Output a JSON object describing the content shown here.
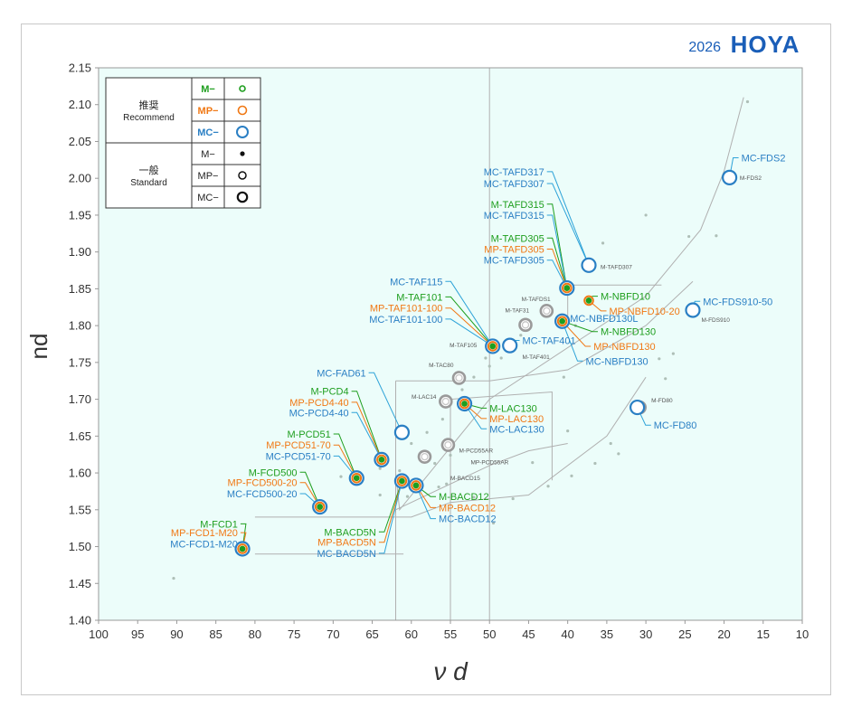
{
  "header": {
    "year": "2026",
    "brand": "HOYA"
  },
  "legend": {
    "recommend_label_ja": "推奨",
    "recommend_label_en": "Recommend",
    "standard_label_ja": "一般",
    "standard_label_en": "Standard",
    "rows": [
      {
        "group": "recommend",
        "series": "M−",
        "symbol": "green ring"
      },
      {
        "group": "recommend",
        "series": "MP−",
        "symbol": "orange ring"
      },
      {
        "group": "recommend",
        "series": "MC−",
        "symbol": "blue ring"
      },
      {
        "group": "standard",
        "series": "M−",
        "symbol": "black dot"
      },
      {
        "group": "standard",
        "series": "MP−",
        "symbol": "black ring"
      },
      {
        "group": "standard",
        "series": "MC−",
        "symbol": "black thick ring"
      }
    ]
  },
  "colors": {
    "plot_bg": "#ecfdfa",
    "m": "#1e9e1e",
    "mp": "#f07814",
    "mc": "#2a7fc4",
    "leader_mc": "#2ea3d8",
    "standard": "#9a9a9a",
    "grid_line": "#b0b0b0",
    "brand": "#1a5eb8"
  },
  "chart_data": {
    "type": "scatter",
    "title": "",
    "xlabel": "ν d",
    "ylabel": "nd",
    "xlim": [
      100,
      10
    ],
    "ylim": [
      1.4,
      2.15
    ],
    "x_reversed": true,
    "xticks": [
      "100",
      "95",
      "90",
      "85",
      "80",
      "75",
      "70",
      "65",
      "60",
      "55",
      "50",
      "45",
      "40",
      "35",
      "30",
      "25",
      "20",
      "15",
      "10"
    ],
    "yticks": [
      "1.40",
      "1.45",
      "1.50",
      "1.55",
      "1.60",
      "1.65",
      "1.70",
      "1.75",
      "1.80",
      "1.85",
      "1.90",
      "1.95",
      "2.00",
      "2.05",
      "2.10",
      "2.15"
    ],
    "grid": false,
    "legend_placement": "top-left",
    "recommended_points": [
      {
        "x": 81.6,
        "y": 1.497,
        "rec": [
          "M",
          "MP",
          "MC"
        ]
      },
      {
        "x": 71.7,
        "y": 1.554,
        "rec": [
          "M",
          "MP",
          "MC"
        ]
      },
      {
        "x": 67.0,
        "y": 1.593,
        "rec": [
          "M",
          "MP",
          "MC"
        ]
      },
      {
        "x": 63.8,
        "y": 1.618,
        "rec": [
          "M",
          "MP",
          "MC"
        ]
      },
      {
        "x": 61.2,
        "y": 1.589,
        "rec": [
          "M",
          "MP",
          "MC"
        ]
      },
      {
        "x": 59.4,
        "y": 1.583,
        "rec": [
          "M",
          "MP",
          "MC"
        ]
      },
      {
        "x": 61.2,
        "y": 1.655,
        "rec": [
          "MC"
        ]
      },
      {
        "x": 53.2,
        "y": 1.694,
        "rec": [
          "M",
          "MP",
          "MC"
        ]
      },
      {
        "x": 49.6,
        "y": 1.772,
        "rec": [
          "M",
          "MP",
          "MC"
        ]
      },
      {
        "x": 47.4,
        "y": 1.773,
        "rec": [
          "MC"
        ]
      },
      {
        "x": 40.1,
        "y": 1.851,
        "rec": [
          "M",
          "MP",
          "MC"
        ]
      },
      {
        "x": 37.3,
        "y": 1.882,
        "rec": [
          "MC"
        ]
      },
      {
        "x": 37.3,
        "y": 1.834,
        "rec": [
          "M",
          "MP"
        ]
      },
      {
        "x": 40.7,
        "y": 1.806,
        "rec": [
          "M",
          "MP",
          "MC"
        ]
      },
      {
        "x": 31.1,
        "y": 1.689,
        "rec": [
          "MC"
        ]
      },
      {
        "x": 24.0,
        "y": 1.821,
        "rec": [
          "MC"
        ]
      },
      {
        "x": 19.3,
        "y": 2.001,
        "rec": [
          "MC"
        ]
      }
    ],
    "standard_rings": [
      {
        "x": 58.3,
        "y": 1.622
      },
      {
        "x": 55.3,
        "y": 1.638
      },
      {
        "x": 55.6,
        "y": 1.697
      },
      {
        "x": 53.9,
        "y": 1.729
      },
      {
        "x": 45.4,
        "y": 1.801
      },
      {
        "x": 42.7,
        "y": 1.82
      },
      {
        "x": 49.6,
        "y": 1.772
      },
      {
        "x": 30.8,
        "y": 1.689
      },
      {
        "x": 19.3,
        "y": 2.001
      },
      {
        "x": 24.0,
        "y": 1.821
      }
    ],
    "standard_dots": [
      {
        "x": 90.4,
        "y": 1.457
      },
      {
        "x": 17.0,
        "y": 2.104
      },
      {
        "x": 30.0,
        "y": 1.95
      },
      {
        "x": 35.5,
        "y": 1.912
      },
      {
        "x": 24.5,
        "y": 1.921
      },
      {
        "x": 21.0,
        "y": 1.922
      },
      {
        "x": 40.5,
        "y": 1.73
      },
      {
        "x": 48.5,
        "y": 1.756
      },
      {
        "x": 50.5,
        "y": 1.756
      },
      {
        "x": 52.0,
        "y": 1.73
      },
      {
        "x": 50.0,
        "y": 1.745
      },
      {
        "x": 53.5,
        "y": 1.713
      },
      {
        "x": 46.0,
        "y": 1.787
      },
      {
        "x": 39.0,
        "y": 1.8
      },
      {
        "x": 26.5,
        "y": 1.762
      },
      {
        "x": 27.5,
        "y": 1.728
      },
      {
        "x": 28.3,
        "y": 1.755
      },
      {
        "x": 40.0,
        "y": 1.657
      },
      {
        "x": 34.5,
        "y": 1.64
      },
      {
        "x": 33.5,
        "y": 1.626
      },
      {
        "x": 36.5,
        "y": 1.613
      },
      {
        "x": 39.5,
        "y": 1.596
      },
      {
        "x": 44.5,
        "y": 1.614
      },
      {
        "x": 42.5,
        "y": 1.582
      },
      {
        "x": 47.0,
        "y": 1.565
      },
      {
        "x": 49.5,
        "y": 1.532
      },
      {
        "x": 52.0,
        "y": 1.567
      },
      {
        "x": 55.5,
        "y": 1.585
      },
      {
        "x": 56.5,
        "y": 1.581
      },
      {
        "x": 57.0,
        "y": 1.613
      },
      {
        "x": 60.0,
        "y": 1.64
      },
      {
        "x": 58.0,
        "y": 1.655
      },
      {
        "x": 61.5,
        "y": 1.603
      },
      {
        "x": 60.5,
        "y": 1.568
      },
      {
        "x": 64.0,
        "y": 1.57
      },
      {
        "x": 64.0,
        "y": 1.606
      },
      {
        "x": 69.0,
        "y": 1.595
      },
      {
        "x": 55.0,
        "y": 1.624
      },
      {
        "x": 56.0,
        "y": 1.673
      }
    ],
    "labels": [
      {
        "text": "M-FCD1",
        "series": "M",
        "size": "big",
        "x": 82.2,
        "y": 1.526,
        "ax": 81.6,
        "ay": 1.497
      },
      {
        "text": "MP-FCD1-M20",
        "series": "MP",
        "size": "big",
        "x": 82.2,
        "y": 1.514,
        "ax": 81.6,
        "ay": 1.497
      },
      {
        "text": "MC-FCD1-M20",
        "series": "MC",
        "size": "big",
        "x": 82.2,
        "y": 1.499,
        "ax": 81.6,
        "ay": 1.497
      },
      {
        "text": "M-FCD500",
        "series": "M",
        "size": "big",
        "x": 74.6,
        "y": 1.596,
        "ax": 71.7,
        "ay": 1.554
      },
      {
        "text": "MP-FCD500-20",
        "series": "MP",
        "size": "big",
        "x": 74.6,
        "y": 1.582,
        "ax": 71.7,
        "ay": 1.554
      },
      {
        "text": "MC-FCD500-20",
        "series": "MC",
        "size": "big",
        "x": 74.6,
        "y": 1.567,
        "ax": 71.7,
        "ay": 1.554
      },
      {
        "text": "M-PCD51",
        "series": "M",
        "size": "big",
        "x": 70.3,
        "y": 1.648,
        "ax": 67.0,
        "ay": 1.593
      },
      {
        "text": "MP-PCD51-70",
        "series": "MP",
        "size": "big",
        "x": 70.3,
        "y": 1.633,
        "ax": 67.0,
        "ay": 1.593
      },
      {
        "text": "MC-PCD51-70",
        "series": "MC",
        "size": "big",
        "x": 70.3,
        "y": 1.618,
        "ax": 67.0,
        "ay": 1.593
      },
      {
        "text": "M-PCD4",
        "series": "M",
        "size": "big",
        "x": 68.0,
        "y": 1.706,
        "ax": 63.8,
        "ay": 1.618
      },
      {
        "text": "MP-PCD4-40",
        "series": "MP",
        "size": "big",
        "x": 68.0,
        "y": 1.691,
        "ax": 63.8,
        "ay": 1.618
      },
      {
        "text": "MC-PCD4-40",
        "series": "MC",
        "size": "big",
        "x": 68.0,
        "y": 1.677,
        "ax": 63.8,
        "ay": 1.618
      },
      {
        "text": "MC-FAD61",
        "series": "MC",
        "size": "big",
        "x": 65.8,
        "y": 1.731,
        "ax": 61.2,
        "ay": 1.655
      },
      {
        "text": "M-BACD5N",
        "series": "M",
        "size": "big",
        "x": 64.5,
        "y": 1.515,
        "ax": 61.2,
        "ay": 1.589,
        "anchor": "end",
        "labelBelow": true
      },
      {
        "text": "MP-BACD5N",
        "series": "MP",
        "size": "big",
        "x": 64.5,
        "y": 1.501,
        "ax": 61.2,
        "ay": 1.589,
        "anchor": "end",
        "labelBelow": true
      },
      {
        "text": "MC-BACD5N",
        "series": "MC",
        "size": "big",
        "x": 64.5,
        "y": 1.486,
        "ax": 61.2,
        "ay": 1.589,
        "anchor": "end",
        "labelBelow": true
      },
      {
        "text": "M-BACD12",
        "series": "M",
        "size": "big",
        "x": 56.5,
        "y": 1.563,
        "ax": 59.4,
        "ay": 1.583,
        "anchor": "start"
      },
      {
        "text": "MP-BACD12",
        "series": "MP",
        "size": "big",
        "x": 56.5,
        "y": 1.548,
        "ax": 59.4,
        "ay": 1.583,
        "anchor": "start"
      },
      {
        "text": "MC-BACD12",
        "series": "MC",
        "size": "big",
        "x": 56.5,
        "y": 1.533,
        "ax": 59.4,
        "ay": 1.583,
        "anchor": "start"
      },
      {
        "text": "M-LAC130",
        "series": "M",
        "size": "big",
        "x": 50.0,
        "y": 1.683,
        "ax": 53.2,
        "ay": 1.694,
        "anchor": "start"
      },
      {
        "text": "MP-LAC130",
        "series": "MP",
        "size": "big",
        "x": 50.0,
        "y": 1.669,
        "ax": 53.2,
        "ay": 1.694,
        "anchor": "start"
      },
      {
        "text": "MC-LAC130",
        "series": "MC",
        "size": "big",
        "x": 50.0,
        "y": 1.655,
        "ax": 53.2,
        "ay": 1.694,
        "anchor": "start"
      },
      {
        "text": "MC-TAF115",
        "series": "MC",
        "size": "big",
        "x": 56.0,
        "y": 1.855,
        "ax": 49.6,
        "ay": 1.772
      },
      {
        "text": "M-TAF101",
        "series": "M",
        "size": "big",
        "x": 56.0,
        "y": 1.834,
        "ax": 49.6,
        "ay": 1.772
      },
      {
        "text": "MP-TAF101-100",
        "series": "MP",
        "size": "big",
        "x": 56.0,
        "y": 1.819,
        "ax": 49.6,
        "ay": 1.772
      },
      {
        "text": "MC-TAF101-100",
        "series": "MC",
        "size": "big",
        "x": 56.0,
        "y": 1.804,
        "ax": 49.6,
        "ay": 1.772
      },
      {
        "text": "MC-TAF401",
        "series": "MC",
        "size": "big",
        "x": 45.8,
        "y": 1.775,
        "ax": 47.4,
        "ay": 1.773,
        "anchor": "start"
      },
      {
        "text": "MC-TAFD317",
        "series": "MC",
        "size": "big",
        "x": 43.0,
        "y": 2.004,
        "ax": 37.3,
        "ay": 1.882
      },
      {
        "text": "MC-TAFD307",
        "series": "MC",
        "size": "big",
        "x": 43.0,
        "y": 1.988,
        "ax": 37.3,
        "ay": 1.882
      },
      {
        "text": "M-TAFD315",
        "series": "M",
        "size": "big",
        "x": 43.0,
        "y": 1.96,
        "ax": 40.1,
        "ay": 1.851
      },
      {
        "text": "MC-TAFD315",
        "series": "MC",
        "size": "big",
        "x": 43.0,
        "y": 1.945,
        "ax": 40.1,
        "ay": 1.851
      },
      {
        "text": "M-TAFD305",
        "series": "M",
        "size": "big",
        "x": 43.0,
        "y": 1.914,
        "ax": 40.1,
        "ay": 1.851
      },
      {
        "text": "MP-TAFD305",
        "series": "MP",
        "size": "big",
        "x": 43.0,
        "y": 1.899,
        "ax": 40.1,
        "ay": 1.851
      },
      {
        "text": "MC-TAFD305",
        "series": "MC",
        "size": "big",
        "x": 43.0,
        "y": 1.884,
        "ax": 40.1,
        "ay": 1.851
      },
      {
        "text": "M-NBFD10",
        "series": "M",
        "size": "big",
        "x": 35.8,
        "y": 1.835,
        "ax": 37.3,
        "ay": 1.834,
        "anchor": "start"
      },
      {
        "text": "MP-NBFD10-20",
        "series": "MP",
        "size": "big",
        "x": 34.7,
        "y": 1.815,
        "ax": 37.3,
        "ay": 1.834,
        "anchor": "start"
      },
      {
        "text": "MC-NBFD130L",
        "series": "MC",
        "size": "big",
        "x": 39.7,
        "y": 1.805,
        "ax": 40.7,
        "ay": 1.806,
        "anchor": "start"
      },
      {
        "text": "M-NBFD130",
        "series": "M",
        "size": "big",
        "x": 35.8,
        "y": 1.787,
        "ax": 40.7,
        "ay": 1.806,
        "anchor": "start"
      },
      {
        "text": "MP-NBFD130",
        "series": "MP",
        "size": "big",
        "x": 36.7,
        "y": 1.767,
        "ax": 40.7,
        "ay": 1.806,
        "anchor": "start"
      },
      {
        "text": "MC-NBFD130",
        "series": "MC",
        "size": "big",
        "x": 37.7,
        "y": 1.747,
        "ax": 40.7,
        "ay": 1.806,
        "anchor": "start"
      },
      {
        "text": "MC-FD80",
        "series": "MC",
        "size": "big",
        "x": 29.0,
        "y": 1.66,
        "ax": 31.1,
        "ay": 1.689,
        "anchor": "start"
      },
      {
        "text": "MC-FDS910-50",
        "series": "MC",
        "size": "big",
        "x": 22.7,
        "y": 1.828,
        "ax": 24.0,
        "ay": 1.821,
        "anchor": "start"
      },
      {
        "text": "MC-FDS2",
        "series": "MC",
        "size": "big",
        "x": 17.8,
        "y": 2.023,
        "ax": 19.3,
        "ay": 2.001,
        "anchor": "start"
      },
      {
        "text": "M-TAFD307",
        "series": "S",
        "size": "small",
        "x": 35.8,
        "y": 1.877,
        "anchor": "start"
      },
      {
        "text": "M-TAFDS1",
        "series": "S",
        "size": "small",
        "x": 45.9,
        "y": 1.833,
        "anchor": "start"
      },
      {
        "text": "M-TAF31",
        "series": "S",
        "size": "small",
        "x": 48.0,
        "y": 1.818,
        "anchor": "start"
      },
      {
        "text": "M-TAF105",
        "series": "S",
        "size": "small",
        "x": 51.6,
        "y": 1.771,
        "anchor": "end"
      },
      {
        "text": "M-TAF401",
        "series": "S",
        "size": "small",
        "x": 45.8,
        "y": 1.755,
        "anchor": "start"
      },
      {
        "text": "M-TAC80",
        "series": "S",
        "size": "small",
        "x": 54.6,
        "y": 1.744,
        "anchor": "end"
      },
      {
        "text": "M-LAC14",
        "series": "S",
        "size": "small",
        "x": 56.8,
        "y": 1.701,
        "anchor": "end"
      },
      {
        "text": "M-PCD55AR",
        "series": "S",
        "size": "small",
        "x": 53.9,
        "y": 1.628,
        "anchor": "start"
      },
      {
        "text": "MP-PCD55AR",
        "series": "S",
        "size": "small",
        "x": 52.4,
        "y": 1.612,
        "anchor": "start"
      },
      {
        "text": "M-BACD15",
        "series": "S",
        "size": "small",
        "x": 55.0,
        "y": 1.59,
        "anchor": "start"
      },
      {
        "text": "M-FD80",
        "series": "S",
        "size": "small",
        "x": 29.3,
        "y": 1.696,
        "anchor": "start"
      },
      {
        "text": "M-FDS910",
        "series": "S",
        "size": "small",
        "x": 22.9,
        "y": 1.805,
        "anchor": "start"
      },
      {
        "text": "M-FDS2",
        "series": "S",
        "size": "small",
        "x": 18.0,
        "y": 1.998,
        "anchor": "start"
      }
    ]
  }
}
